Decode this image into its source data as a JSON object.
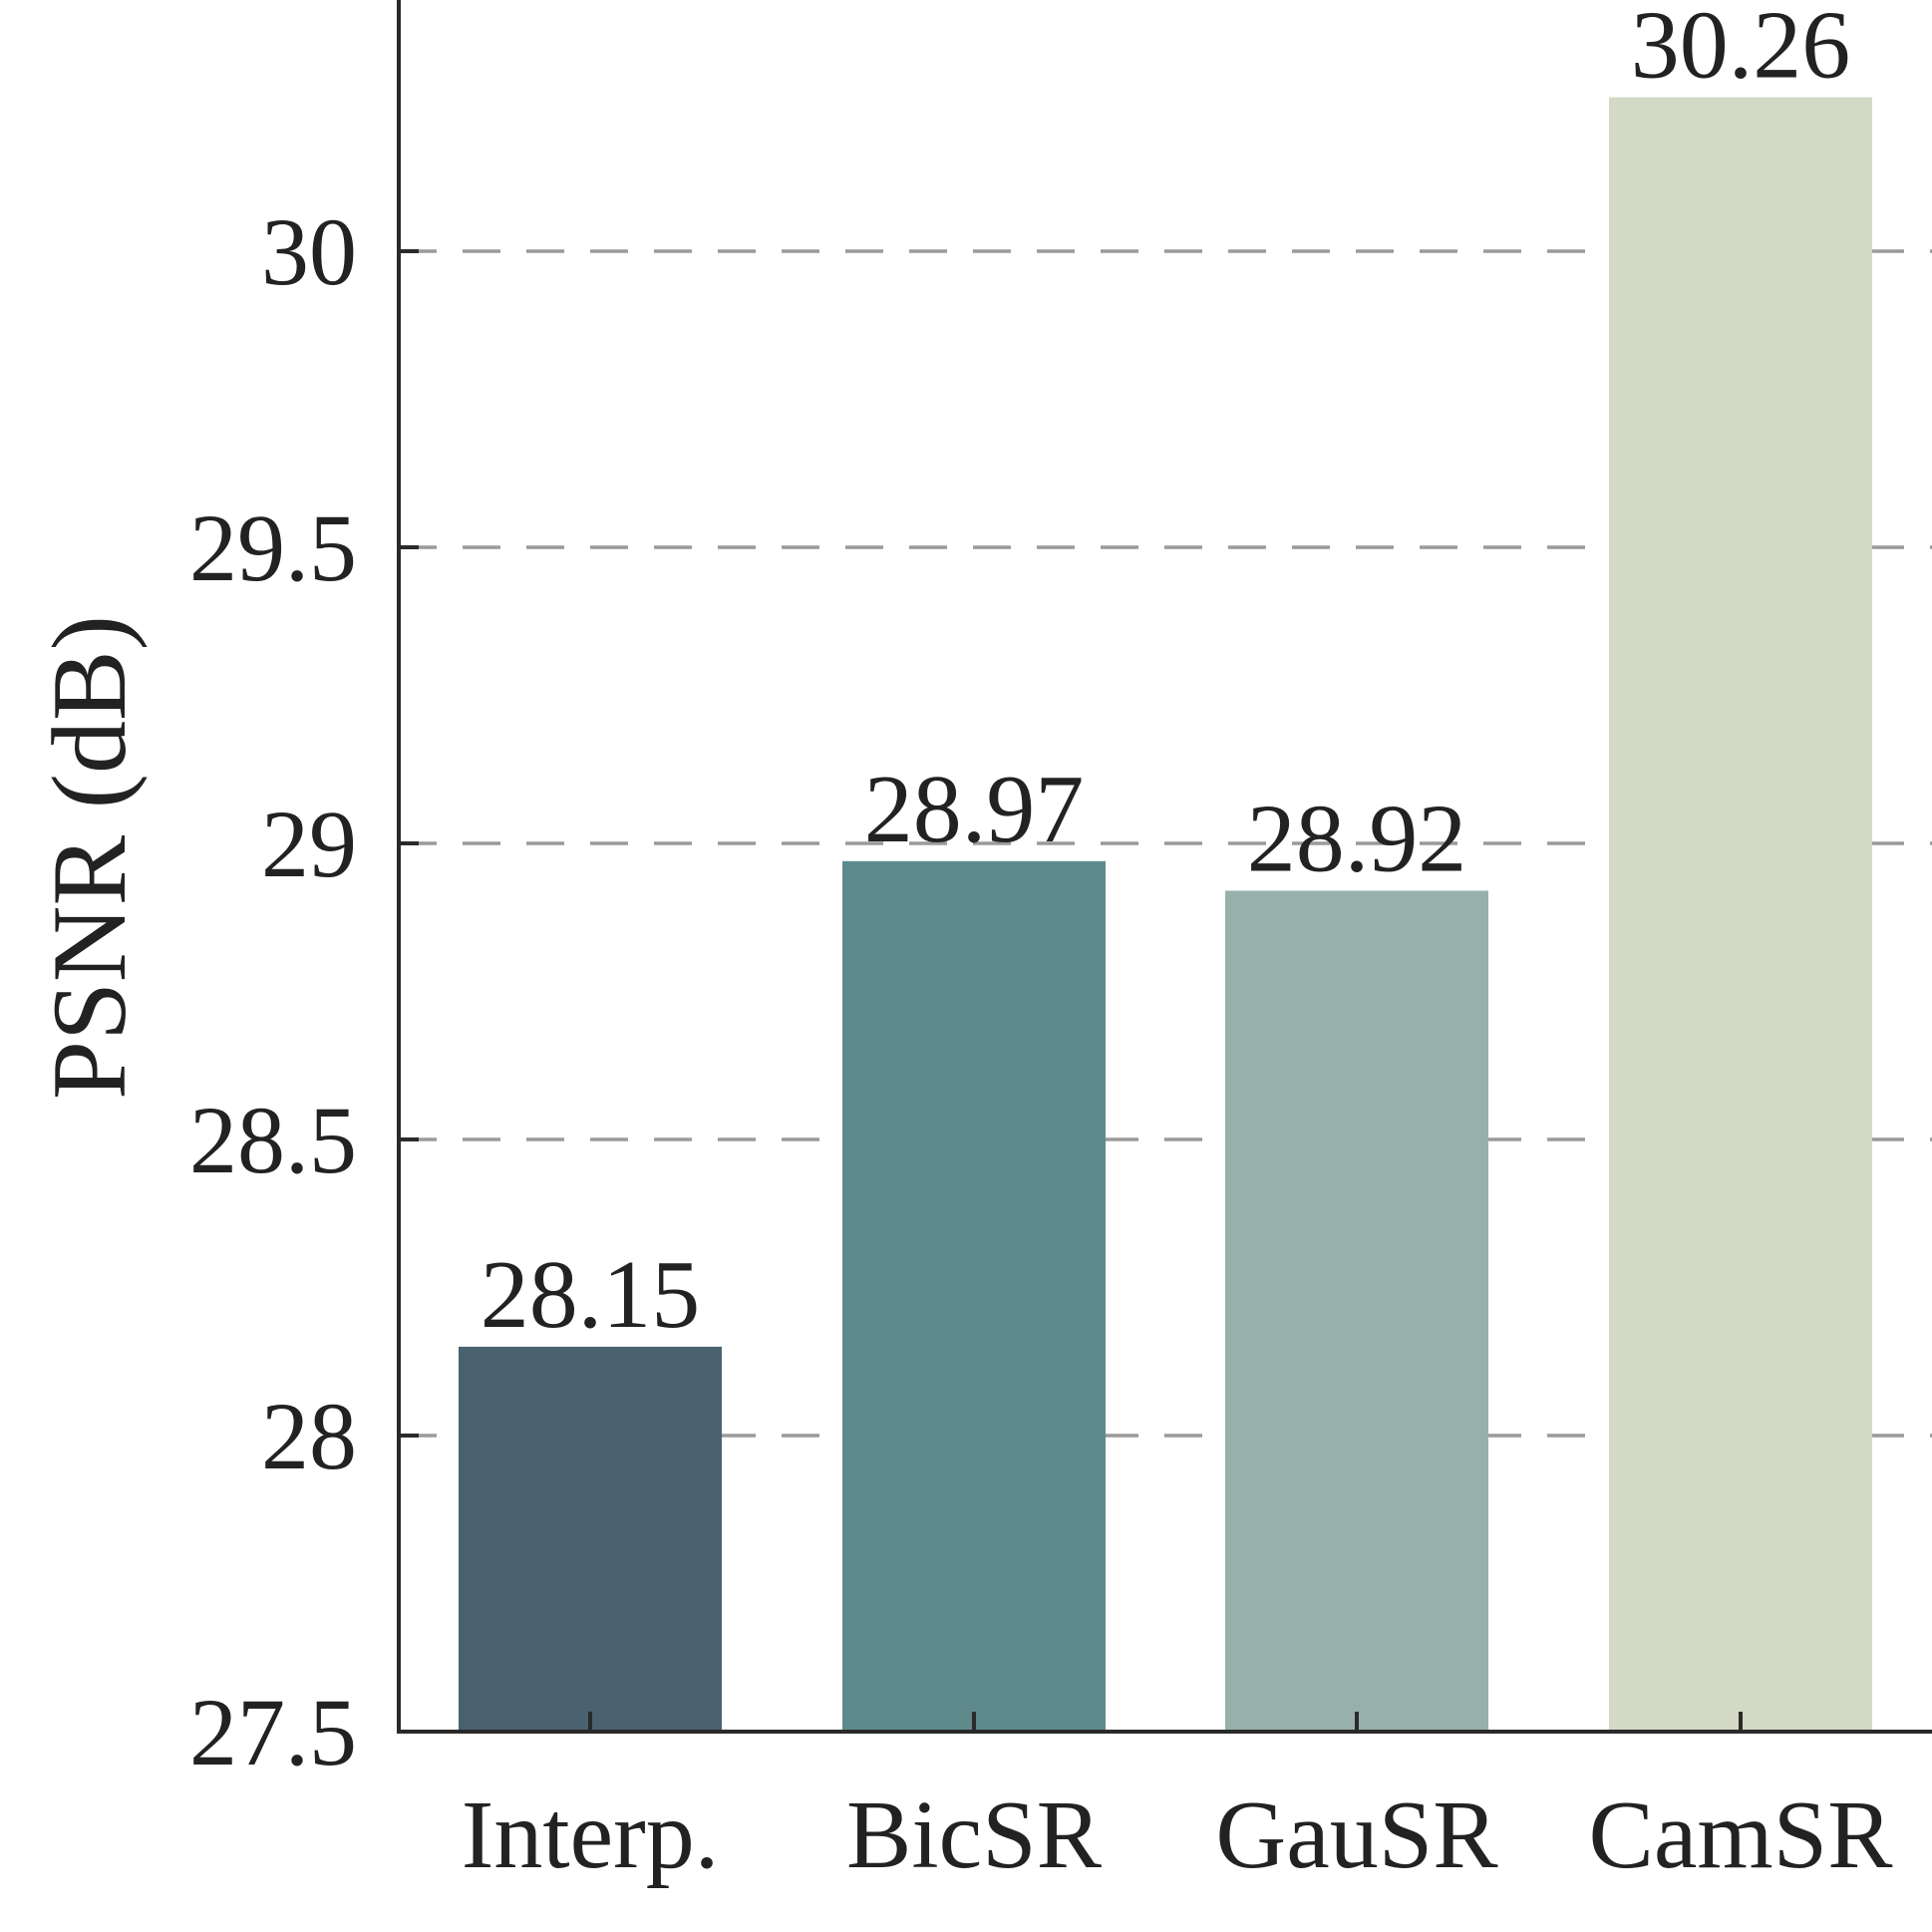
{
  "chart_data": {
    "type": "bar",
    "categories": [
      "Interp.",
      "BicSR",
      "GauSR",
      "CamSR"
    ],
    "values": [
      28.15,
      28.97,
      28.92,
      30.26
    ],
    "value_labels": [
      "28.15",
      "28.97",
      "28.92",
      "30.26"
    ],
    "colors": [
      "#4a6170",
      "#5f8a8b",
      "#98b0ab",
      "#d3d9c6"
    ],
    "title": "",
    "xlabel": "",
    "ylabel": "PSNR (dB)",
    "ylim": [
      27.5,
      30.5
    ],
    "yticks": [
      27.5,
      28,
      28.5,
      29,
      29.5,
      30
    ],
    "ytick_labels": [
      "27.5",
      "28",
      "28.5",
      "29",
      "29.5",
      "30"
    ],
    "grid": "horizontal dashed",
    "legend": "none"
  }
}
